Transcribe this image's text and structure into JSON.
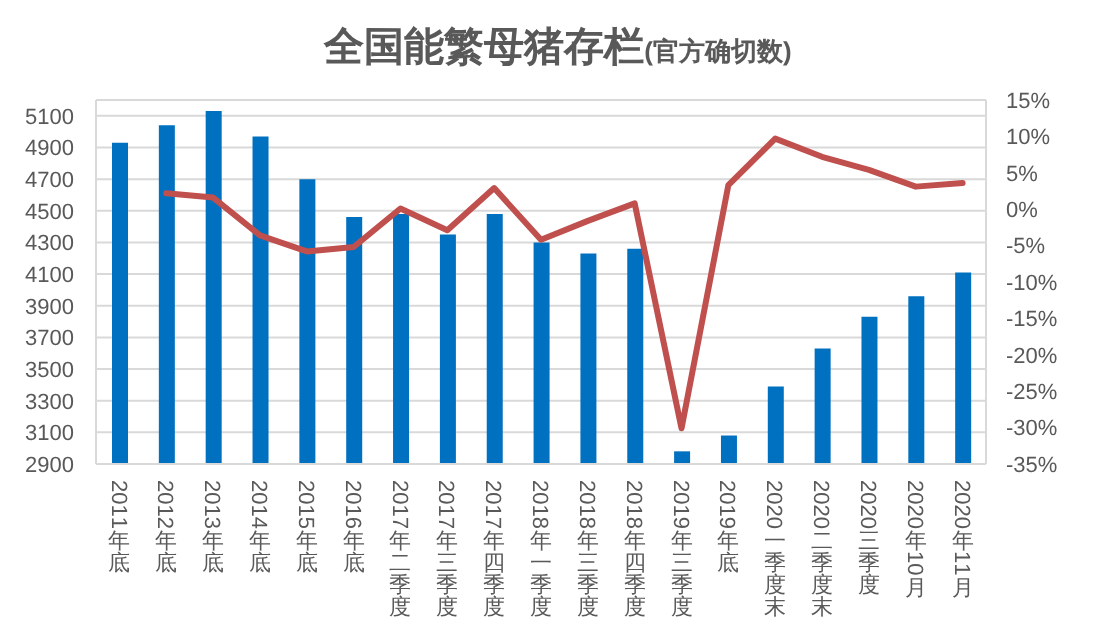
{
  "chart_data": {
    "type": "bar",
    "title": "全国能繁母猪存栏",
    "subtitle": "(官方确切数)",
    "categories": [
      "2011年底",
      "2012年底",
      "2013年底",
      "2014年底",
      "2015年底",
      "2016年底",
      "2017年二季度",
      "2017年三季度",
      "2017年四季度",
      "2018年一季度",
      "2018年三季度",
      "2018年四季度",
      "2019年三季度",
      "2019年底",
      "2020一季度末",
      "2020二季度末",
      "2020三季度",
      "2020年10月",
      "2020年11月"
    ],
    "series": [
      {
        "color": "#0070c0",
        "values": [
          4930,
          5040,
          5130,
          4970,
          4700,
          4460,
          4480,
          4350,
          4480,
          4300,
          4230,
          4260,
          2980,
          3080,
          3390,
          3630,
          3830,
          3960,
          4110
        ]
      },
      {
        "type": "line",
        "axis": "y2",
        "color": "#c0504d",
        "values": [
          null,
          2.2,
          1.6,
          -3.6,
          -5.8,
          -5.2,
          0.1,
          -2.9,
          2.9,
          -4.2,
          -1.6,
          0.8,
          -30.1,
          3.3,
          9.7,
          7.2,
          5.4,
          3.1,
          3.6
        ]
      }
    ],
    "ylim": [
      2900,
      5200
    ],
    "yticks": [
      2900,
      3100,
      3300,
      3500,
      3700,
      3900,
      4100,
      4300,
      4500,
      4700,
      4900,
      5100
    ],
    "y2lim": [
      -35,
      15
    ],
    "y2ticks": [
      {
        "value": -35,
        "label": "-35%"
      },
      {
        "value": -30,
        "label": "-30%"
      },
      {
        "value": -25,
        "label": "-25%"
      },
      {
        "value": -20,
        "label": "-20%"
      },
      {
        "value": -15,
        "label": "-15%"
      },
      {
        "value": -10,
        "label": "-10%"
      },
      {
        "value": -5,
        "label": "-5%"
      },
      {
        "value": 0,
        "label": "0%"
      },
      {
        "value": 5,
        "label": "5%"
      },
      {
        "value": 10,
        "label": "10%"
      },
      {
        "value": 15,
        "label": "15%"
      }
    ],
    "grid": "y",
    "marker": "none"
  }
}
